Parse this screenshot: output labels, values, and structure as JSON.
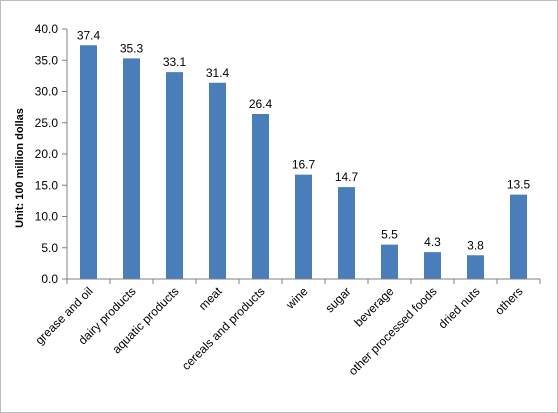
{
  "chart_data": {
    "type": "bar",
    "title": "",
    "xlabel": "",
    "ylabel": "Unit: 100 million dollas",
    "ylim": [
      0,
      40
    ],
    "ytick_values": [
      0,
      5,
      10,
      15,
      20,
      25,
      30,
      35,
      40
    ],
    "ytick_labels": [
      "0.0",
      "5.0",
      "10.0",
      "15.0",
      "20.0",
      "25.0",
      "30.0",
      "35.0",
      "40.0"
    ],
    "categories": [
      "grease and oil",
      "dairy products",
      "aquatic products",
      "meat",
      "cereals and products",
      "wine",
      "sugar",
      "beverage",
      "other processed foods",
      "dried nuts",
      "others"
    ],
    "values": [
      37.4,
      35.3,
      33.1,
      31.4,
      26.4,
      16.7,
      14.7,
      5.5,
      4.3,
      3.8,
      13.5
    ],
    "value_labels": [
      "37.4",
      "35.3",
      "33.1",
      "31.4",
      "26.4",
      "16.7",
      "14.7",
      "5.5",
      "4.3",
      "3.8",
      "13.5"
    ],
    "bar_color": "#4a7ebb",
    "grid": false,
    "legend": "none"
  }
}
